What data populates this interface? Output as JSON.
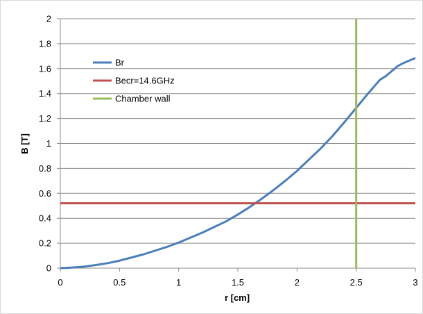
{
  "chart_data": {
    "type": "line",
    "title": "",
    "xlabel": "r [cm]",
    "ylabel": "B [T]",
    "xlim": [
      0,
      3
    ],
    "ylim": [
      0,
      2
    ],
    "xticks": [
      "0",
      "0.5",
      "1",
      "1.5",
      "2",
      "2.5",
      "3"
    ],
    "yticks": [
      "0",
      "0.2",
      "0.4",
      "0.6",
      "0.8",
      "1",
      "1.2",
      "1.4",
      "1.6",
      "1.8",
      "2"
    ],
    "grid": "horizontal",
    "legend_position": "upper-left",
    "series": [
      {
        "name": "Br",
        "color": "#4a7ebb",
        "x": [
          0,
          0.1,
          0.2,
          0.3,
          0.4,
          0.5,
          0.6,
          0.7,
          0.8,
          0.9,
          1.0,
          1.1,
          1.2,
          1.3,
          1.4,
          1.5,
          1.6,
          1.7,
          1.8,
          1.9,
          2.0,
          2.1,
          2.2,
          2.3,
          2.4,
          2.5,
          2.6,
          2.7,
          2.75,
          2.8,
          2.85,
          2.9,
          2.95,
          3.0
        ],
        "y": [
          0,
          0.005,
          0.012,
          0.025,
          0.04,
          0.06,
          0.085,
          0.11,
          0.14,
          0.17,
          0.205,
          0.245,
          0.285,
          0.33,
          0.375,
          0.43,
          0.49,
          0.555,
          0.625,
          0.7,
          0.78,
          0.87,
          0.96,
          1.06,
          1.17,
          1.285,
          1.4,
          1.51,
          1.54,
          1.58,
          1.62,
          1.645,
          1.665,
          1.685
        ]
      },
      {
        "name": "Becr=14.6GHz",
        "color": "#c0504d",
        "x": [
          0,
          3
        ],
        "y": [
          0.52,
          0.52
        ]
      },
      {
        "name": "Chamber wall",
        "color": "#9bbb59",
        "x": [
          2.5,
          2.5
        ],
        "y": [
          0,
          2
        ]
      }
    ]
  }
}
